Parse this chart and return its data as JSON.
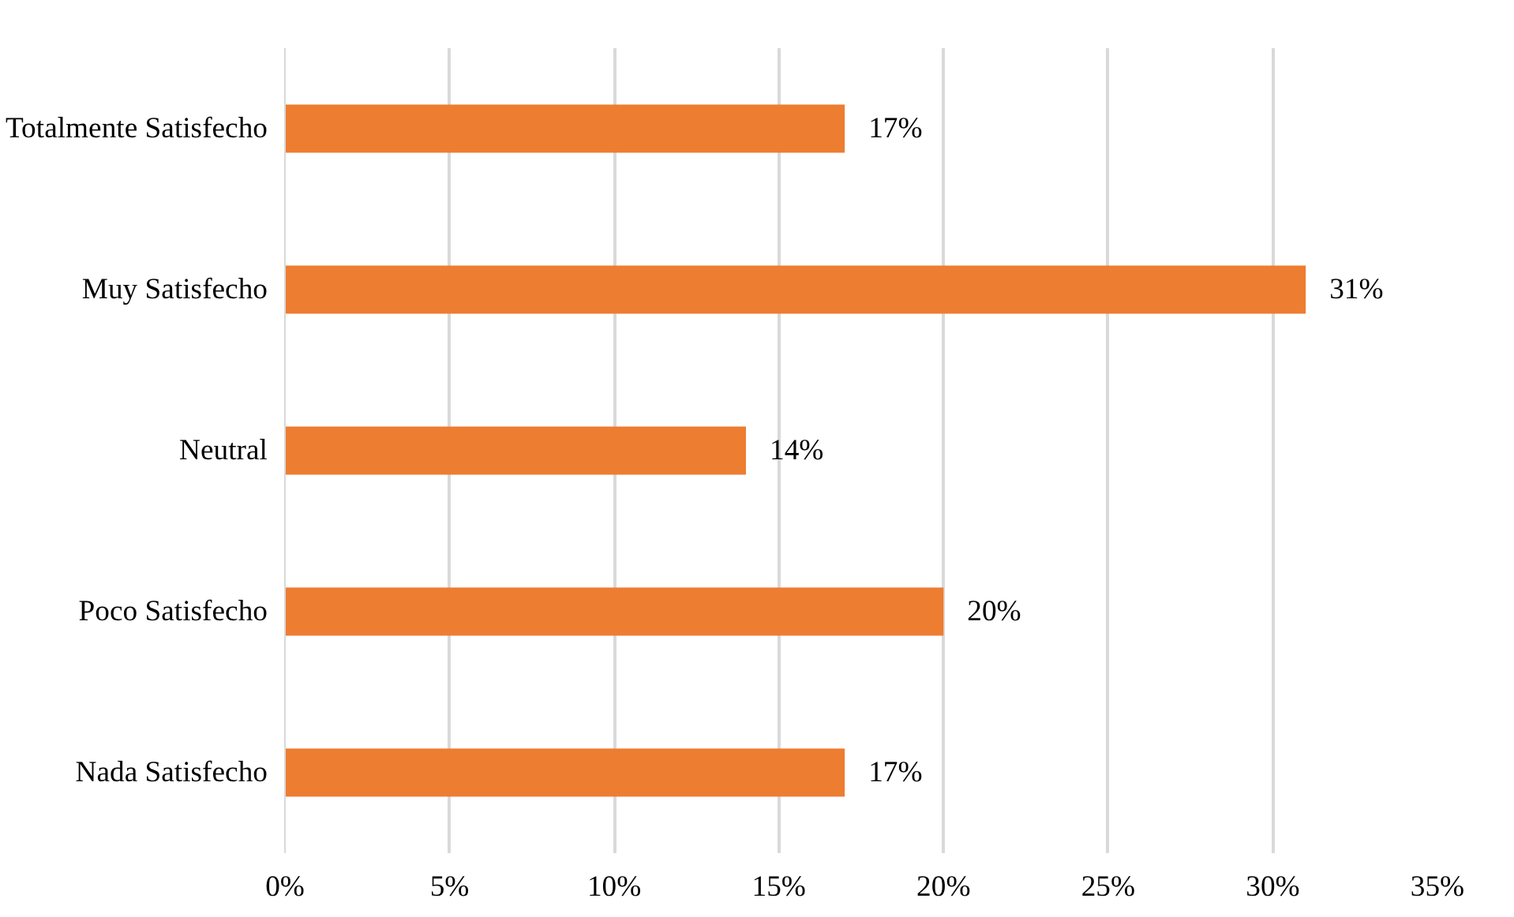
{
  "chart_data": {
    "type": "bar",
    "orientation": "horizontal",
    "categories": [
      "Totalmente Satisfecho",
      "Muy Satisfecho",
      "Neutral",
      "Poco Satisfecho",
      "Nada Satisfecho"
    ],
    "values": [
      17,
      31,
      14,
      20,
      17
    ],
    "value_labels": [
      "17%",
      "31%",
      "14%",
      "20%",
      "17%"
    ],
    "color": "#ed7d31",
    "xlim": [
      0,
      35
    ],
    "xticks": [
      {
        "value": 0,
        "label": "0%"
      },
      {
        "value": 5,
        "label": "5%"
      },
      {
        "value": 10,
        "label": "10%"
      },
      {
        "value": 15,
        "label": "15%"
      },
      {
        "value": 20,
        "label": "20%"
      },
      {
        "value": 25,
        "label": "25%"
      },
      {
        "value": 30,
        "label": "30%"
      },
      {
        "value": 35,
        "label": "35%"
      }
    ],
    "grid": "x"
  }
}
